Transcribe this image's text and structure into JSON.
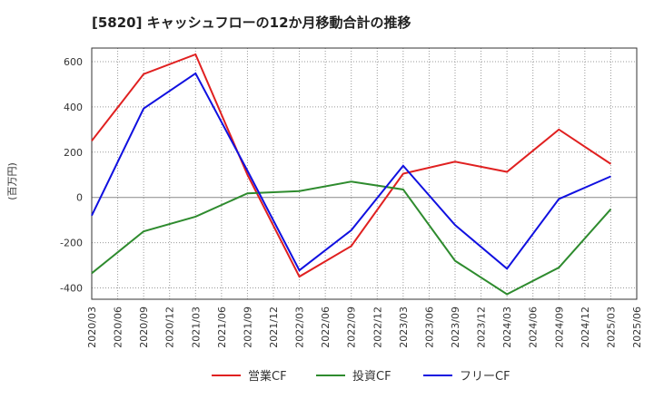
{
  "chart_data": {
    "type": "line",
    "title": "[5820]  キャッシュフローの12か月移動合計の推移",
    "ylabel": "(百万円)",
    "xlabel": "",
    "ylim": [
      -450,
      660
    ],
    "yticks": [
      -400,
      -200,
      0,
      200,
      400,
      600
    ],
    "ytick_labels": [
      "-400",
      "-200",
      "0",
      "200",
      "400",
      "600"
    ],
    "xticks": [
      "2020/03",
      "2020/06",
      "2020/09",
      "2020/12",
      "2021/03",
      "2021/06",
      "2021/09",
      "2021/12",
      "2022/03",
      "2022/06",
      "2022/09",
      "2022/12",
      "2023/03",
      "2023/06",
      "2023/09",
      "2023/12",
      "2024/03",
      "2024/06",
      "2024/09",
      "2024/12",
      "2025/03",
      "2025/06"
    ],
    "x": [
      "2020/03",
      "2020/09",
      "2021/03",
      "2021/09",
      "2022/03",
      "2022/09",
      "2023/03",
      "2023/09",
      "2024/03",
      "2024/09",
      "2025/03"
    ],
    "series": [
      {
        "name": "営業CF",
        "color": "#e02020",
        "values": [
          250,
          545,
          632,
          100,
          -350,
          -215,
          105,
          158,
          113,
          300,
          148
        ]
      },
      {
        "name": "投資CF",
        "color": "#2e8b2e",
        "values": [
          -335,
          -150,
          -85,
          18,
          28,
          70,
          35,
          -280,
          -428,
          -310,
          -52
        ]
      },
      {
        "name": "フリーCF",
        "color": "#1010e0",
        "values": [
          -80,
          393,
          548,
          118,
          -322,
          -145,
          140,
          -122,
          -315,
          -7,
          93
        ]
      }
    ],
    "grid": true,
    "legend_position": "bottom-center"
  }
}
